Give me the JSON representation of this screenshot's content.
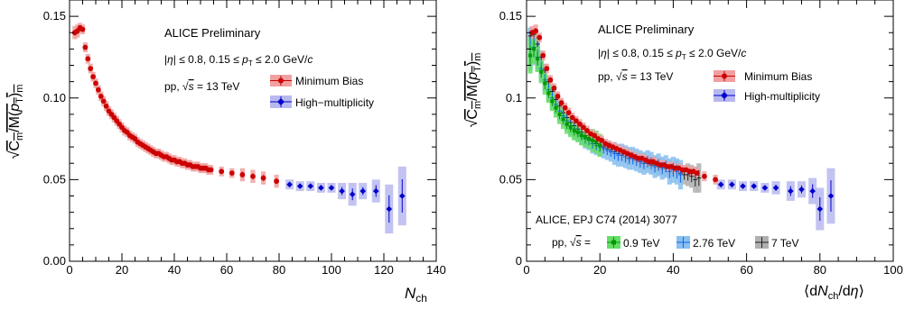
{
  "chart_data": [
    {
      "type": "scatter",
      "ylabel": "√C_m/M(p_T)_m",
      "xlabel": "N_ch",
      "xlim": [
        0,
        140
      ],
      "ylim": [
        0,
        0.16
      ],
      "xticks": [
        "0",
        "20",
        "40",
        "60",
        "80",
        "100",
        "120",
        "140"
      ],
      "yticks": [
        "0.00",
        "0.05",
        "0.10",
        "0.15"
      ],
      "annotations": [
        "ALICE Preliminary",
        "|η| ≤ 0.8, 0.15 ≤ p_T ≤ 2.0 GeV/c",
        "pp, √s = 13 TeV"
      ],
      "legend": [
        "Minimum Bias",
        "High−multiplicity"
      ],
      "series": [
        {
          "name": "Minimum Bias",
          "color": "#cc0000",
          "band_color": "#f0a0a0",
          "x": [
            2,
            3,
            4,
            5,
            6,
            7,
            8,
            9,
            10,
            11,
            12,
            13,
            14,
            15,
            16,
            17,
            18,
            19,
            20,
            21,
            22,
            23,
            24,
            25,
            26,
            27,
            28,
            29,
            30,
            31,
            32,
            33,
            34,
            35,
            36,
            37,
            38,
            39,
            40,
            41,
            42,
            43,
            44,
            45,
            46,
            47,
            48,
            49,
            50,
            51,
            52,
            53,
            54,
            58,
            62,
            66,
            70,
            74,
            79
          ],
          "y": [
            0.14,
            0.141,
            0.143,
            0.142,
            0.131,
            0.124,
            0.118,
            0.113,
            0.109,
            0.105,
            0.101,
            0.098,
            0.095,
            0.092,
            0.09,
            0.088,
            0.086,
            0.084,
            0.082,
            0.08,
            0.079,
            0.077,
            0.076,
            0.075,
            0.073,
            0.072,
            0.071,
            0.07,
            0.069,
            0.068,
            0.067,
            0.066,
            0.066,
            0.065,
            0.064,
            0.064,
            0.063,
            0.062,
            0.062,
            0.061,
            0.061,
            0.06,
            0.06,
            0.059,
            0.059,
            0.058,
            0.058,
            0.058,
            0.057,
            0.057,
            0.057,
            0.056,
            0.056,
            0.055,
            0.054,
            0.053,
            0.052,
            0.051,
            0.049
          ],
          "err": [
            0.003,
            0.003,
            0.002,
            0.002,
            0.002,
            0.002,
            0.002,
            0.002,
            0.002,
            0.002,
            0.002,
            0.002,
            0.002,
            0.002,
            0.002,
            0.002,
            0.002,
            0.002,
            0.002,
            0.002,
            0.002,
            0.002,
            0.002,
            0.002,
            0.002,
            0.002,
            0.002,
            0.002,
            0.002,
            0.002,
            0.002,
            0.002,
            0.002,
            0.002,
            0.002,
            0.002,
            0.002,
            0.002,
            0.002,
            0.002,
            0.002,
            0.002,
            0.002,
            0.002,
            0.002,
            0.002,
            0.002,
            0.002,
            0.002,
            0.002,
            0.002,
            0.002,
            0.002,
            0.002,
            0.002,
            0.003,
            0.003,
            0.003,
            0.003
          ]
        },
        {
          "name": "High−multiplicity",
          "color": "#0000cc",
          "band_color": "#b8b8f0",
          "x": [
            84,
            88,
            92,
            96,
            100,
            104,
            108,
            112,
            117,
            122,
            127
          ],
          "y": [
            0.047,
            0.046,
            0.046,
            0.045,
            0.045,
            0.043,
            0.041,
            0.043,
            0.043,
            0.032,
            0.04
          ],
          "err": [
            0.002,
            0.002,
            0.002,
            0.002,
            0.002,
            0.004,
            0.006,
            0.004,
            0.006,
            0.014,
            0.017
          ]
        }
      ]
    },
    {
      "type": "scatter",
      "ylabel": "√C_m/M(p_T)_m",
      "xlabel": "⟨dN_ch/dη⟩",
      "xlim": [
        0,
        100
      ],
      "ylim": [
        0,
        0.16
      ],
      "xticks": [
        "0",
        "20",
        "40",
        "60",
        "80",
        "100"
      ],
      "yticks": [
        "0",
        "0.05",
        "0.1",
        "0.15"
      ],
      "annotations": [
        "ALICE Preliminary",
        "|η| ≤ 0.8, 0.15 ≤ p_T ≤ 2.0 GeV/c",
        "pp, √s = 13 TeV",
        "ALICE, EPJ C74 (2014) 3077",
        "pp, √s ="
      ],
      "legend": [
        "Minimum Bias",
        "High-multiplicity",
        "0.9 TeV",
        "2.76 TeV",
        "7 TeV"
      ],
      "series": [
        {
          "name": "Minimum Bias",
          "color": "#cc0000",
          "band_color": "#f0a0a0",
          "x": [
            1.5,
            2.5,
            3.5,
            4.5,
            5.5,
            6.5,
            7.5,
            8.5,
            9.5,
            10.5,
            11.5,
            12.5,
            13.5,
            14.5,
            15.5,
            16.5,
            17.5,
            18.5,
            19.5,
            20.5,
            21.5,
            22.5,
            23.5,
            24.5,
            25.5,
            26.5,
            27.5,
            28.5,
            29.5,
            30.5,
            31.5,
            32.5,
            33.5,
            34.5,
            35.5,
            36.5,
            37.5,
            38.5,
            39.5,
            40.5,
            41.5,
            42.5,
            43.5,
            44.5,
            45.5,
            46.5,
            48.5,
            51.5
          ],
          "y": [
            0.14,
            0.141,
            0.137,
            0.126,
            0.118,
            0.111,
            0.106,
            0.101,
            0.097,
            0.094,
            0.091,
            0.088,
            0.086,
            0.084,
            0.082,
            0.08,
            0.078,
            0.077,
            0.075,
            0.074,
            0.072,
            0.071,
            0.07,
            0.069,
            0.068,
            0.067,
            0.066,
            0.065,
            0.064,
            0.063,
            0.063,
            0.062,
            0.061,
            0.061,
            0.06,
            0.059,
            0.059,
            0.058,
            0.058,
            0.057,
            0.057,
            0.056,
            0.056,
            0.055,
            0.055,
            0.054,
            0.052,
            0.05
          ],
          "err": [
            0.003,
            0.003,
            0.002,
            0.002,
            0.002,
            0.002,
            0.002,
            0.002,
            0.002,
            0.002,
            0.002,
            0.002,
            0.002,
            0.002,
            0.002,
            0.002,
            0.002,
            0.002,
            0.002,
            0.002,
            0.002,
            0.002,
            0.002,
            0.002,
            0.002,
            0.002,
            0.002,
            0.002,
            0.002,
            0.002,
            0.002,
            0.002,
            0.002,
            0.002,
            0.002,
            0.002,
            0.002,
            0.002,
            0.002,
            0.002,
            0.002,
            0.002,
            0.002,
            0.002,
            0.002,
            0.002,
            0.002,
            0.002
          ]
        },
        {
          "name": "High-multiplicity",
          "color": "#0000cc",
          "band_color": "#b8b8f0",
          "x": [
            53,
            56,
            59,
            62,
            65,
            68,
            72,
            75,
            78,
            80,
            83
          ],
          "y": [
            0.047,
            0.047,
            0.046,
            0.046,
            0.045,
            0.045,
            0.043,
            0.044,
            0.043,
            0.032,
            0.04
          ],
          "err": [
            0.002,
            0.002,
            0.002,
            0.002,
            0.002,
            0.003,
            0.005,
            0.004,
            0.007,
            0.012,
            0.016
          ]
        },
        {
          "name": "0.9 TeV",
          "color": "#009900",
          "band_color": "#66dd66",
          "x": [
            1,
            2,
            3,
            4,
            5,
            6,
            7,
            8,
            9,
            10,
            11,
            12,
            13,
            14,
            15,
            16,
            17,
            18,
            19,
            20
          ],
          "y": [
            0.126,
            0.13,
            0.124,
            0.116,
            0.109,
            0.103,
            0.098,
            0.094,
            0.09,
            0.087,
            0.084,
            0.082,
            0.08,
            0.079,
            0.077,
            0.076,
            0.075,
            0.074,
            0.073,
            0.071
          ],
          "err": [
            0.01,
            0.008,
            0.007,
            0.006,
            0.006,
            0.005,
            0.005,
            0.005,
            0.005,
            0.005,
            0.005,
            0.005,
            0.005,
            0.005,
            0.005,
            0.005,
            0.005,
            0.006,
            0.006,
            0.006
          ]
        },
        {
          "name": "2.76 TeV",
          "color": "#1166ee",
          "band_color": "#88c0f0",
          "x": [
            1,
            2,
            3,
            4,
            5,
            6,
            7,
            8,
            9,
            10,
            11,
            12,
            13,
            14,
            15,
            16,
            17,
            18,
            19,
            20,
            21,
            22,
            23,
            24,
            25,
            26,
            27,
            28,
            29,
            30,
            31,
            32,
            33,
            34,
            35,
            36,
            37,
            38,
            39,
            40,
            41,
            42
          ],
          "y": [
            0.13,
            0.131,
            0.125,
            0.118,
            0.111,
            0.105,
            0.1,
            0.096,
            0.092,
            0.089,
            0.086,
            0.083,
            0.081,
            0.079,
            0.077,
            0.075,
            0.074,
            0.072,
            0.071,
            0.07,
            0.069,
            0.068,
            0.067,
            0.066,
            0.065,
            0.065,
            0.064,
            0.063,
            0.063,
            0.062,
            0.061,
            0.06,
            0.061,
            0.06,
            0.058,
            0.059,
            0.057,
            0.058,
            0.055,
            0.056,
            0.055,
            0.053
          ],
          "err": [
            0.012,
            0.01,
            0.008,
            0.007,
            0.006,
            0.006,
            0.006,
            0.005,
            0.005,
            0.005,
            0.005,
            0.005,
            0.005,
            0.005,
            0.005,
            0.005,
            0.005,
            0.005,
            0.005,
            0.005,
            0.005,
            0.005,
            0.005,
            0.006,
            0.006,
            0.006,
            0.006,
            0.006,
            0.006,
            0.006,
            0.006,
            0.006,
            0.006,
            0.006,
            0.006,
            0.006,
            0.006,
            0.006,
            0.007,
            0.007,
            0.007,
            0.008
          ]
        },
        {
          "name": "7 TeV",
          "color": "#222222",
          "band_color": "#b0b0b0",
          "x": [
            1,
            2,
            3,
            4,
            5,
            6,
            7,
            8,
            9,
            10,
            11,
            12,
            13,
            14,
            15,
            16,
            17,
            18,
            19,
            20,
            21,
            22,
            23,
            24,
            25,
            26,
            27,
            28,
            29,
            30,
            31,
            32,
            33,
            34,
            35,
            36,
            37,
            38,
            39,
            40,
            41,
            42,
            43,
            44,
            45,
            46,
            47
          ],
          "y": [
            0.138,
            0.139,
            0.133,
            0.125,
            0.117,
            0.11,
            0.104,
            0.099,
            0.095,
            0.091,
            0.088,
            0.085,
            0.083,
            0.081,
            0.079,
            0.077,
            0.075,
            0.074,
            0.072,
            0.071,
            0.07,
            0.069,
            0.068,
            0.067,
            0.066,
            0.065,
            0.064,
            0.063,
            0.063,
            0.062,
            0.061,
            0.06,
            0.06,
            0.059,
            0.059,
            0.058,
            0.058,
            0.057,
            0.057,
            0.056,
            0.056,
            0.054,
            0.053,
            0.053,
            0.052,
            0.05,
            0.051
          ],
          "err": [
            0.004,
            0.003,
            0.003,
            0.003,
            0.003,
            0.003,
            0.003,
            0.003,
            0.003,
            0.003,
            0.003,
            0.003,
            0.003,
            0.003,
            0.003,
            0.003,
            0.003,
            0.003,
            0.003,
            0.003,
            0.003,
            0.003,
            0.003,
            0.003,
            0.003,
            0.003,
            0.003,
            0.003,
            0.003,
            0.003,
            0.003,
            0.003,
            0.003,
            0.004,
            0.004,
            0.004,
            0.004,
            0.004,
            0.004,
            0.004,
            0.005,
            0.005,
            0.005,
            0.006,
            0.006,
            0.007,
            0.008
          ]
        }
      ]
    }
  ]
}
